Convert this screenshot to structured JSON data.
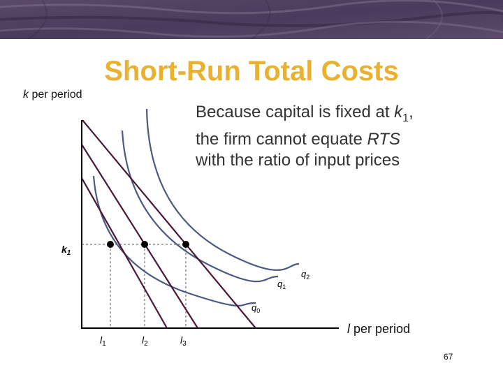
{
  "slide": {
    "title": "Short-Run Total Costs",
    "page_number": "67"
  },
  "axes": {
    "y_label_var": "k",
    "y_label_rest": " per period",
    "x_label_var": "l",
    "x_label_rest": " per period"
  },
  "callout": {
    "line1_pre": "Because capital is fixed at ",
    "line1_var": "k",
    "line1_sub": "1",
    "line1_post": ",",
    "line2_pre": "the firm cannot equate ",
    "line2_var": "RTS",
    "line3": "with the ratio of input prices"
  },
  "points": {
    "k1_var": "k",
    "k1_sub": "1",
    "l1_var": "l",
    "l1_sub": "1",
    "l2_var": "l",
    "l2_sub": "2",
    "l3_var": "l",
    "l3_sub": "3"
  },
  "isoquants": {
    "q0_var": "q",
    "q0_sub": "0",
    "q1_var": "q",
    "q1_sub": "1",
    "q2_var": "q",
    "q2_sub": "2"
  },
  "colors": {
    "title": "#e8b12f",
    "isoquant": "#4a5a80",
    "isocost": "#4b1838",
    "axis": "#000000",
    "dashed": "#555555"
  }
}
